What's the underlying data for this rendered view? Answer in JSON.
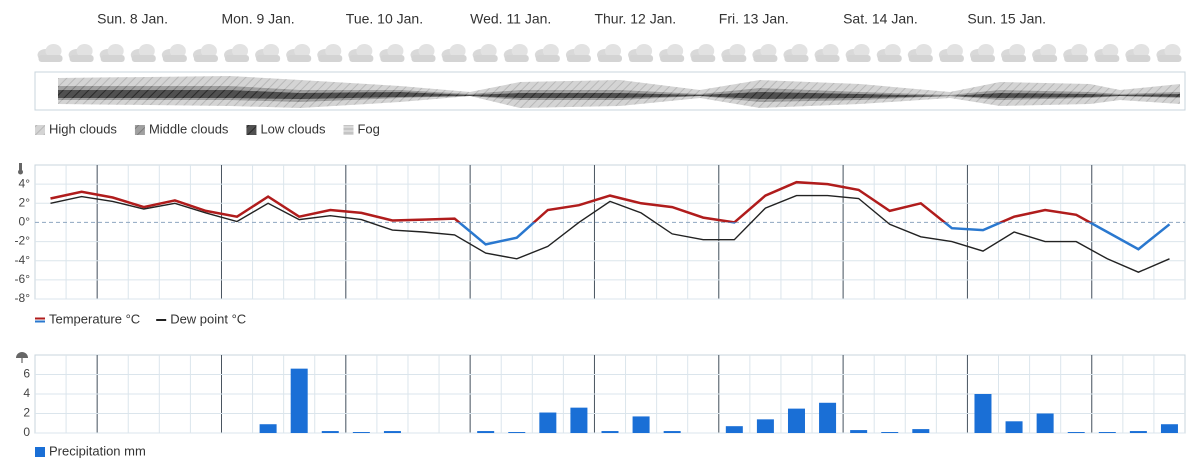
{
  "days": [
    "Sun. 8 Jan.",
    "Mon. 9 Jan.",
    "Tue. 10 Jan.",
    "Wed. 11 Jan.",
    "Thur. 12 Jan.",
    "Fri. 13 Jan.",
    "Sat. 14 Jan.",
    "Sun. 15 Jan."
  ],
  "cloud_legend": [
    "High clouds",
    "Middle clouds",
    "Low clouds",
    "Fog"
  ],
  "chart_data": [
    {
      "type": "line",
      "ylim": [
        -8,
        6
      ],
      "yticks": [
        {
          "value": -8,
          "label": "-8°"
        },
        {
          "value": -6,
          "label": "-6°"
        },
        {
          "value": -4,
          "label": "-4°"
        },
        {
          "value": -2,
          "label": "-2°"
        },
        {
          "value": 0,
          "label": "0°"
        },
        {
          "value": 2,
          "label": "2°"
        },
        {
          "value": 4,
          "label": "4°"
        }
      ],
      "grid": true,
      "series": [
        {
          "name": "Temperature °C",
          "color": "#b01c1c",
          "color_below_zero": "#2a78cf",
          "values": [
            2.5,
            3.2,
            2.6,
            1.6,
            2.3,
            1.2,
            0.6,
            2.7,
            0.6,
            1.3,
            1.0,
            0.2,
            0.3,
            0.4,
            -2.3,
            -1.6,
            1.3,
            1.8,
            2.8,
            2.0,
            1.6,
            0.5,
            0.0,
            2.8,
            4.2,
            4.0,
            3.4,
            1.2,
            2.0,
            -0.6,
            -0.8,
            0.6,
            1.3,
            0.8,
            -1.0,
            -2.8,
            -0.2
          ]
        },
        {
          "name": "Dew point °C",
          "color": "#222222",
          "values": [
            2.0,
            2.7,
            2.2,
            1.4,
            2.0,
            1.0,
            0.1,
            2.0,
            0.3,
            0.7,
            0.3,
            -0.8,
            -1.0,
            -1.3,
            -3.2,
            -3.8,
            -2.5,
            0.0,
            2.2,
            1.0,
            -1.2,
            -1.8,
            -1.8,
            1.5,
            2.8,
            2.8,
            2.5,
            -0.2,
            -1.5,
            -2.0,
            -3.0,
            -1.0,
            -2.0,
            -2.0,
            -3.8,
            -5.2,
            -3.8
          ]
        }
      ]
    },
    {
      "type": "bar",
      "ylim": [
        0,
        8
      ],
      "yticks": [
        0,
        2,
        4,
        6
      ],
      "grid": true,
      "series": [
        {
          "name": "Precipitation mm",
          "color": "#1a6fd6",
          "values": [
            0,
            0,
            0,
            0,
            0,
            0,
            0,
            0.9,
            6.6,
            0.2,
            0.1,
            0.2,
            0,
            0,
            0.2,
            0.1,
            2.1,
            2.6,
            0.2,
            1.7,
            0.2,
            0,
            0.7,
            1.4,
            2.5,
            3.1,
            0.3,
            0.1,
            0.4,
            0,
            4.0,
            1.2,
            2.0,
            0.1,
            0.1,
            0.2,
            0.9
          ]
        }
      ]
    }
  ]
}
